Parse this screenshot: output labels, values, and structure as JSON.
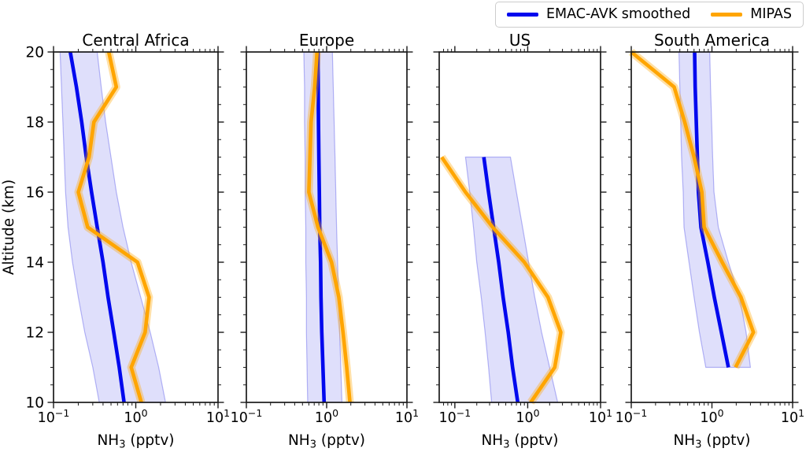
{
  "legend": {
    "items": [
      {
        "label": "EMAC-AVK smoothed",
        "color": "#0008ee"
      },
      {
        "label": "MIPAS",
        "color": "#ffa500"
      }
    ]
  },
  "axes": {
    "ylabel": "Altitude (km)",
    "xlabel": "NH₃ (pptv)",
    "y_tick_labels": [
      "10",
      "12",
      "14",
      "16",
      "18",
      "20"
    ],
    "y_tick_values": [
      10,
      12,
      14,
      16,
      18,
      20
    ],
    "band_fill": "rgba(55,55,230,0.16)",
    "band_edge": "rgba(55,55,230,0.35)",
    "halo_color": "rgba(255,165,0,0.35)"
  },
  "chart_data": [
    {
      "type": "line",
      "title": "Central Africa",
      "xscale": "log",
      "xlim": [
        0.1,
        10
      ],
      "ylim": [
        10,
        20
      ],
      "x_tick_values": [
        0.1,
        1,
        10
      ],
      "x_tick_labels": [
        "10⁻¹",
        "10⁰",
        "10¹"
      ],
      "xlabel": "NH₃ (pptv)",
      "altitudes": [
        10,
        11,
        12,
        13,
        14,
        15,
        16,
        17,
        18,
        19,
        20
      ],
      "series": [
        {
          "name": "EMAC-AVK smoothed",
          "values": [
            0.72,
            0.63,
            0.54,
            0.46,
            0.4,
            0.34,
            0.29,
            0.25,
            0.22,
            0.19,
            0.16
          ],
          "band_lo": [
            0.36,
            0.3,
            0.24,
            0.2,
            0.17,
            0.15,
            0.14,
            0.135,
            0.13,
            0.125,
            0.12
          ],
          "band_hi": [
            2.3,
            1.9,
            1.5,
            1.15,
            0.88,
            0.7,
            0.58,
            0.5,
            0.43,
            0.38,
            0.34
          ]
        },
        {
          "name": "MIPAS",
          "values": [
            1.17,
            0.88,
            1.3,
            1.45,
            1.05,
            0.26,
            0.2,
            0.27,
            0.31,
            0.58,
            0.47
          ]
        }
      ]
    },
    {
      "type": "line",
      "title": "Europe",
      "xscale": "log",
      "xlim": [
        0.1,
        10
      ],
      "ylim": [
        10,
        20
      ],
      "x_tick_values": [
        0.1,
        1,
        10
      ],
      "x_tick_labels": [
        "10⁻¹",
        "10⁰",
        "10¹"
      ],
      "xlabel": "NH₃ (pptv)",
      "altitudes": [
        10,
        11,
        12,
        13,
        14,
        15,
        16,
        17,
        18,
        19,
        20
      ],
      "series": [
        {
          "name": "EMAC-AVK smoothed",
          "values": [
            0.93,
            0.9,
            0.87,
            0.85,
            0.84,
            0.82,
            0.81,
            0.8,
            0.79,
            0.785,
            0.78
          ],
          "band_lo": [
            0.58,
            0.57,
            0.56,
            0.56,
            0.55,
            0.55,
            0.54,
            0.54,
            0.53,
            0.53,
            0.52
          ],
          "band_hi": [
            1.55,
            1.5,
            1.45,
            1.41,
            1.37,
            1.33,
            1.3,
            1.27,
            1.24,
            1.21,
            1.18
          ]
        },
        {
          "name": "MIPAS",
          "values": [
            1.95,
            1.78,
            1.6,
            1.42,
            1.15,
            0.78,
            0.6,
            0.62,
            0.64,
            0.71,
            0.76
          ]
        }
      ]
    },
    {
      "type": "line",
      "title": "US",
      "xscale": "log",
      "xlim": [
        0.061,
        10
      ],
      "ylim": [
        10,
        20
      ],
      "x_tick_values": [
        0.1,
        1,
        10
      ],
      "x_tick_labels": [
        "10⁻¹",
        "10⁰",
        "10¹"
      ],
      "xlabel": "NH₃ (pptv)",
      "altitudes": [
        10,
        11,
        12,
        13,
        14,
        15,
        16,
        17
      ],
      "series": [
        {
          "name": "EMAC-AVK smoothed",
          "values": [
            0.73,
            0.62,
            0.54,
            0.46,
            0.4,
            0.34,
            0.29,
            0.25
          ],
          "band_lo": [
            0.32,
            0.29,
            0.26,
            0.23,
            0.2,
            0.18,
            0.16,
            0.14
          ],
          "band_hi": [
            2.58,
            2.0,
            1.55,
            1.25,
            1.03,
            0.85,
            0.7,
            0.58
          ]
        },
        {
          "name": "MIPAS",
          "values": [
            1.1,
            2.35,
            2.85,
            1.9,
            0.9,
            0.33,
            0.14,
            0.066
          ]
        }
      ]
    },
    {
      "type": "line",
      "title": "South America",
      "xscale": "log",
      "xlim": [
        0.1,
        10
      ],
      "ylim": [
        10,
        20
      ],
      "x_tick_values": [
        0.1,
        1,
        10
      ],
      "x_tick_labels": [
        "10⁻¹",
        "10⁰",
        "10¹"
      ],
      "xlabel": "NH₃ (pptv)",
      "altitudes": [
        11,
        12,
        13,
        14,
        15,
        16,
        17,
        18,
        19,
        20
      ],
      "series": [
        {
          "name": "EMAC-AVK smoothed",
          "values": [
            1.6,
            1.31,
            1.07,
            0.89,
            0.73,
            0.68,
            0.66,
            0.64,
            0.62,
            0.61
          ],
          "band_lo": [
            0.84,
            0.7,
            0.6,
            0.52,
            0.45,
            0.44,
            0.42,
            0.41,
            0.4,
            0.39
          ],
          "band_hi": [
            3.0,
            2.65,
            2.2,
            1.6,
            1.2,
            1.06,
            1.02,
            0.99,
            0.96,
            0.94
          ]
        },
        {
          "name": "MIPAS",
          "values": [
            1.96,
            3.27,
            2.29,
            1.34,
            0.8,
            0.75,
            0.6,
            0.46,
            0.34,
            0.1
          ]
        }
      ]
    }
  ]
}
